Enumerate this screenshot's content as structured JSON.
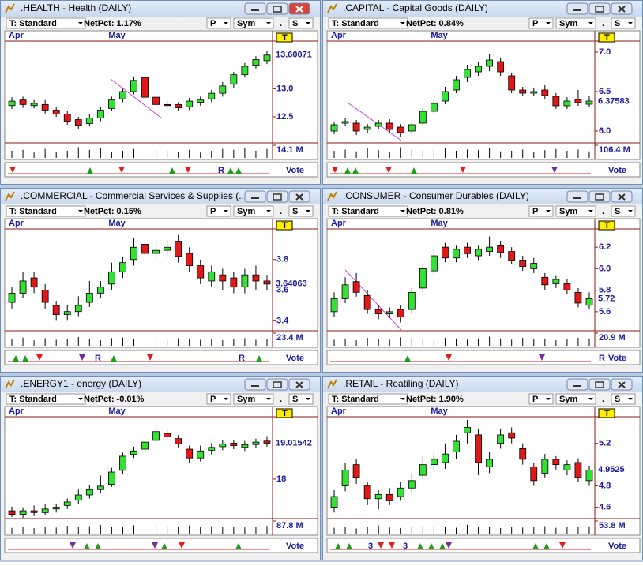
{
  "chart_data": [
    {
      "type": "candlestick",
      "title": ".HEALTH - Health (DAILY)",
      "toolbar": [
        "T: Standard",
        "NetPct: 1.17%",
        "P",
        "Sym",
        ".",
        "S"
      ],
      "marker": "T",
      "vote": "Vote",
      "vote_texts": [
        "R"
      ],
      "categories": [
        "Apr",
        null,
        null,
        null,
        null,
        null,
        null,
        null,
        null,
        "May",
        null,
        null,
        null,
        null,
        null,
        null,
        null,
        null,
        null,
        null,
        null,
        null,
        null,
        null
      ],
      "ylim": [
        12.05,
        13.85
      ],
      "yticks": [
        12.5,
        {
          "value": 13,
          "label": "13.0"
        }
      ],
      "last": 13.60071,
      "series": [
        {
          "open": [
            12.7,
            12.8,
            12.7,
            12.72,
            12.62,
            12.55,
            12.45,
            12.38,
            12.48,
            12.65,
            12.82,
            12.95,
            13.2,
            12.85,
            12.72,
            12.72,
            12.68,
            12.76,
            12.82,
            12.92,
            13.08,
            13.25,
            13.42,
            13.5
          ],
          "high": [
            12.85,
            12.86,
            12.8,
            12.8,
            12.68,
            12.6,
            12.5,
            12.55,
            12.68,
            12.86,
            13.0,
            13.22,
            13.25,
            12.9,
            12.78,
            12.76,
            12.84,
            12.86,
            12.98,
            13.12,
            13.3,
            13.46,
            13.58,
            13.68
          ],
          "low": [
            12.64,
            12.66,
            12.65,
            12.56,
            12.5,
            12.36,
            12.28,
            12.33,
            12.42,
            12.6,
            12.76,
            12.9,
            12.8,
            12.66,
            12.64,
            12.6,
            12.62,
            12.7,
            12.76,
            12.86,
            13.02,
            13.2,
            13.36,
            13.44
          ],
          "close": [
            12.78,
            12.72,
            12.74,
            12.62,
            12.55,
            12.42,
            12.35,
            12.48,
            12.62,
            12.8,
            12.95,
            13.15,
            12.85,
            12.72,
            12.7,
            12.66,
            12.78,
            12.8,
            12.92,
            13.05,
            13.25,
            13.4,
            13.52,
            13.6
          ]
        }
      ],
      "volume_max": {
        "value": 14.1,
        "label": "14.1 M"
      },
      "volume": [
        8,
        9,
        6,
        10,
        7,
        8,
        12,
        9,
        11,
        7,
        8,
        10,
        13,
        9,
        8,
        7,
        9,
        6,
        8,
        10,
        9,
        11,
        8,
        10
      ]
    },
    {
      "type": "candlestick",
      "title": ".CAPITAL - Capital Goods (DAILY)",
      "toolbar": [
        "T: Standard",
        "NetPct: 0.84%",
        "P",
        "Sym",
        ".",
        "S"
      ],
      "marker": "T",
      "vote": "Vote",
      "vote_texts": [],
      "categories": [
        "Apr",
        null,
        null,
        null,
        null,
        null,
        null,
        null,
        null,
        "May",
        null,
        null,
        null,
        null,
        null,
        null,
        null,
        null,
        null,
        null,
        null,
        null,
        null,
        null
      ],
      "ylim": [
        5.86,
        7.14
      ],
      "yticks": [
        {
          "value": 6,
          "label": "6.0"
        },
        6.5,
        {
          "value": 7,
          "label": "7.0"
        }
      ],
      "last": 6.37583,
      "series": [
        {
          "open": [
            6.0,
            6.1,
            6.1,
            6.02,
            6.06,
            6.1,
            6.05,
            6.0,
            6.1,
            6.25,
            6.38,
            6.52,
            6.68,
            6.75,
            6.82,
            6.88,
            6.7,
            6.52,
            6.48,
            6.52,
            6.44,
            6.32,
            6.4,
            6.34
          ],
          "high": [
            6.12,
            6.16,
            6.14,
            6.09,
            6.14,
            6.15,
            6.09,
            6.12,
            6.29,
            6.39,
            6.56,
            6.7,
            6.84,
            6.88,
            6.98,
            6.92,
            6.74,
            6.56,
            6.55,
            6.58,
            6.48,
            6.43,
            6.52,
            6.44
          ],
          "low": [
            5.96,
            6.06,
            5.95,
            5.97,
            6.02,
            5.98,
            5.93,
            5.96,
            6.06,
            6.21,
            6.34,
            6.48,
            6.62,
            6.7,
            6.76,
            6.7,
            6.48,
            6.44,
            6.44,
            6.41,
            6.28,
            6.28,
            6.32,
            6.3
          ],
          "close": [
            6.08,
            6.12,
            6.0,
            6.05,
            6.1,
            6.02,
            5.98,
            6.08,
            6.25,
            6.35,
            6.5,
            6.65,
            6.78,
            6.82,
            6.9,
            6.75,
            6.52,
            6.48,
            6.5,
            6.45,
            6.32,
            6.38,
            6.36,
            6.38
          ]
        }
      ],
      "volume_max": {
        "value": 106.4,
        "label": "106.4 M"
      },
      "volume": [
        60,
        70,
        55,
        80,
        65,
        50,
        90,
        70,
        60,
        75,
        85,
        60,
        70,
        65,
        80,
        55,
        60,
        70,
        50,
        65,
        75,
        60,
        70,
        55
      ]
    },
    {
      "type": "candlestick",
      "title": ".COMMERCIAL - Commercial Services & Supplies (...",
      "toolbar": [
        "T: Standard",
        "NetPct: 0.15%",
        "P",
        "Sym",
        ".",
        "S"
      ],
      "marker": "T",
      "vote": "Vote",
      "vote_texts": [
        "R",
        "R"
      ],
      "categories": [
        "Apr",
        null,
        null,
        null,
        null,
        null,
        null,
        null,
        null,
        "May",
        null,
        null,
        null,
        null,
        null,
        null,
        null,
        null,
        null,
        null,
        null,
        null,
        null,
        null
      ],
      "ylim": [
        3.34,
        4.0
      ],
      "yticks": [
        3.4,
        3.6,
        3.8
      ],
      "last": 3.64063,
      "series": [
        {
          "open": [
            3.52,
            3.58,
            3.68,
            3.6,
            3.5,
            3.44,
            3.46,
            3.52,
            3.58,
            3.64,
            3.72,
            3.8,
            3.9,
            3.84,
            3.86,
            3.92,
            3.84,
            3.76,
            3.66,
            3.7,
            3.68,
            3.62,
            3.7,
            3.66
          ],
          "high": [
            3.62,
            3.72,
            3.72,
            3.64,
            3.53,
            3.5,
            3.56,
            3.66,
            3.66,
            3.78,
            3.82,
            3.94,
            3.95,
            3.92,
            3.93,
            3.96,
            3.88,
            3.8,
            3.76,
            3.74,
            3.72,
            3.74,
            3.76,
            3.7
          ],
          "low": [
            3.48,
            3.55,
            3.58,
            3.48,
            3.4,
            3.4,
            3.43,
            3.49,
            3.55,
            3.6,
            3.68,
            3.76,
            3.8,
            3.8,
            3.82,
            3.78,
            3.72,
            3.64,
            3.62,
            3.6,
            3.58,
            3.58,
            3.6,
            3.6
          ],
          "close": [
            3.58,
            3.66,
            3.62,
            3.52,
            3.44,
            3.46,
            3.5,
            3.58,
            3.62,
            3.72,
            3.78,
            3.88,
            3.84,
            3.86,
            3.88,
            3.82,
            3.76,
            3.68,
            3.72,
            3.66,
            3.62,
            3.7,
            3.66,
            3.64
          ]
        }
      ],
      "volume_max": {
        "value": 23.4,
        "label": "23.4 M"
      },
      "volume": [
        12,
        15,
        10,
        14,
        11,
        13,
        16,
        12,
        10,
        14,
        15,
        12,
        11,
        13,
        10,
        14,
        12,
        11,
        13,
        10,
        12,
        14,
        11,
        13
      ]
    },
    {
      "type": "candlestick",
      "title": ".CONSUMER - Consumer Durables (DAILY)",
      "toolbar": [
        "T: Standard",
        "NetPct: 0.81%",
        "P",
        "Sym",
        ".",
        "S"
      ],
      "marker": "T",
      "vote": "Vote",
      "vote_texts": [
        "R"
      ],
      "categories": [
        "Apr",
        null,
        null,
        null,
        null,
        null,
        null,
        null,
        null,
        "May",
        null,
        null,
        null,
        null,
        null,
        null,
        null,
        null,
        null,
        null,
        null,
        null,
        null,
        null
      ],
      "ylim": [
        5.43,
        6.37
      ],
      "yticks": [
        5.6,
        5.8,
        {
          "value": 6,
          "label": "6.0"
        },
        6.2
      ],
      "last": 5.72,
      "series": [
        {
          "open": [
            5.6,
            5.72,
            5.88,
            5.75,
            5.62,
            5.58,
            5.62,
            5.62,
            5.82,
            5.98,
            6.2,
            6.1,
            6.2,
            6.12,
            6.16,
            6.22,
            6.16,
            6.08,
            6.0,
            5.92,
            5.86,
            5.86,
            5.78,
            5.66
          ],
          "high": [
            5.78,
            5.92,
            5.96,
            5.8,
            5.66,
            5.64,
            5.66,
            5.82,
            6.05,
            6.18,
            6.24,
            6.22,
            6.24,
            6.22,
            6.3,
            6.26,
            6.2,
            6.12,
            6.1,
            5.96,
            5.94,
            5.9,
            5.82,
            5.78
          ],
          "low": [
            5.55,
            5.68,
            5.74,
            5.58,
            5.53,
            5.54,
            5.5,
            5.58,
            5.78,
            5.94,
            6.06,
            6.06,
            6.1,
            6.08,
            6.12,
            6.1,
            6.04,
            5.98,
            5.96,
            5.8,
            5.82,
            5.76,
            5.64,
            5.62
          ],
          "close": [
            5.72,
            5.85,
            5.78,
            5.62,
            5.58,
            5.6,
            5.55,
            5.78,
            6.0,
            6.12,
            6.1,
            6.18,
            6.14,
            6.18,
            6.2,
            6.15,
            6.08,
            6.02,
            6.05,
            5.85,
            5.9,
            5.8,
            5.68,
            5.72
          ]
        }
      ],
      "volume_max": {
        "value": 20.9,
        "label": "20.9 M"
      },
      "volume": [
        10,
        12,
        9,
        13,
        11,
        10,
        14,
        12,
        11,
        9,
        13,
        12,
        10,
        11,
        15,
        12,
        10,
        13,
        11,
        12,
        9,
        11,
        13,
        12
      ]
    },
    {
      "type": "candlestick",
      "title": ".ENERGY1 - energy (DAILY)",
      "toolbar": [
        "T: Standard",
        "NetPct: -0.01%",
        "P",
        "Sym",
        ".",
        "S"
      ],
      "marker": "T",
      "vote": "Vote",
      "vote_texts": [],
      "categories": [
        "Apr",
        null,
        null,
        null,
        null,
        null,
        null,
        null,
        null,
        "May",
        null,
        null,
        null,
        null,
        null,
        null,
        null,
        null,
        null,
        null,
        null,
        null,
        null,
        null
      ],
      "ylim": [
        16.9,
        19.77
      ],
      "yticks": [
        18
      ],
      "last": 19.01542,
      "series": [
        {
          "open": [
            17.1,
            17.0,
            17.1,
            17.05,
            17.15,
            17.25,
            17.4,
            17.55,
            17.7,
            17.85,
            18.25,
            18.7,
            18.85,
            19.1,
            19.3,
            19.15,
            18.85,
            18.6,
            18.82,
            18.92,
            19.02,
            18.9,
            18.98,
            19.08
          ],
          "high": [
            17.22,
            17.2,
            17.25,
            17.28,
            17.3,
            17.45,
            17.7,
            17.82,
            18.1,
            18.32,
            18.75,
            18.92,
            19.18,
            19.55,
            19.42,
            19.25,
            18.95,
            18.95,
            19.02,
            19.12,
            19.12,
            19.08,
            19.15,
            19.22
          ],
          "low": [
            16.92,
            16.9,
            16.95,
            16.98,
            17.05,
            17.15,
            17.3,
            17.45,
            17.62,
            17.78,
            18.15,
            18.6,
            18.75,
            19.0,
            19.1,
            18.9,
            18.45,
            18.5,
            18.7,
            18.82,
            18.85,
            18.8,
            18.88,
            18.92
          ],
          "close": [
            17.0,
            17.1,
            17.05,
            17.15,
            17.2,
            17.35,
            17.55,
            17.7,
            17.8,
            18.2,
            18.65,
            18.8,
            19.05,
            19.35,
            19.2,
            19.0,
            18.6,
            18.8,
            18.9,
            19.0,
            18.95,
            18.98,
            19.05,
            19.02
          ]
        }
      ],
      "volume_max": {
        "value": 87.8,
        "label": "87.8 M"
      },
      "volume": [
        40,
        45,
        38,
        50,
        42,
        55,
        48,
        52,
        60,
        45,
        50,
        58,
        47,
        62,
        50,
        44,
        56,
        48,
        52,
        46,
        50,
        43,
        49,
        54
      ]
    },
    {
      "type": "candlestick",
      "title": ".RETAIL - Reatiling (DAILY)",
      "toolbar": [
        "T: Standard",
        "NetPct: 1.90%",
        "P",
        "Sym",
        ".",
        "S"
      ],
      "marker": "T",
      "vote": "Vote",
      "vote_texts": [
        "3",
        "3"
      ],
      "categories": [
        "Apr",
        null,
        null,
        null,
        null,
        null,
        null,
        null,
        null,
        "May",
        null,
        null,
        null,
        null,
        null,
        null,
        null,
        null,
        null,
        null,
        null,
        null,
        null,
        null
      ],
      "ylim": [
        4.5,
        5.45
      ],
      "yticks": [
        4.6,
        4.8,
        5.2
      ],
      "last": 4.9525,
      "series": [
        {
          "open": [
            4.6,
            4.8,
            5.0,
            4.8,
            4.68,
            4.72,
            4.7,
            4.78,
            4.9,
            5.0,
            5.02,
            5.12,
            5.3,
            5.28,
            4.98,
            5.2,
            5.3,
            5.15,
            4.98,
            4.92,
            5.05,
            4.95,
            5.02,
            4.85
          ],
          "high": [
            4.76,
            5.02,
            5.05,
            4.84,
            4.76,
            4.78,
            4.84,
            4.92,
            5.08,
            5.12,
            5.2,
            5.28,
            5.42,
            5.34,
            5.12,
            5.34,
            5.35,
            5.2,
            5.02,
            5.1,
            5.08,
            5.04,
            5.06,
            4.99
          ],
          "low": [
            4.55,
            4.75,
            4.82,
            4.62,
            4.58,
            4.62,
            4.66,
            4.74,
            4.86,
            4.95,
            4.96,
            5.05,
            5.2,
            4.9,
            4.92,
            5.15,
            5.2,
            5.0,
            4.8,
            4.88,
            4.95,
            4.9,
            4.84,
            4.8
          ],
          "close": [
            4.7,
            4.95,
            4.88,
            4.68,
            4.72,
            4.66,
            4.78,
            4.85,
            5.0,
            5.05,
            5.1,
            5.22,
            5.35,
            5.02,
            5.05,
            5.28,
            5.25,
            5.05,
            4.85,
            5.05,
            5.0,
            5.0,
            4.88,
            4.95
          ]
        }
      ],
      "volume_max": {
        "value": 53.8,
        "label": "53.8 M"
      },
      "volume": [
        25,
        30,
        22,
        28,
        35,
        26,
        24,
        30,
        27,
        33,
        29,
        25,
        38,
        31,
        27,
        24,
        30,
        26,
        28,
        32,
        25,
        29,
        27,
        31
      ]
    }
  ]
}
